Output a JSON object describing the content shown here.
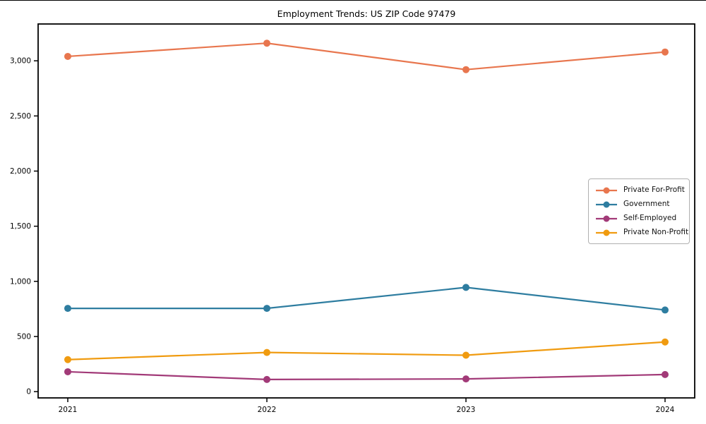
{
  "chart_data": {
    "type": "line",
    "title": "Employment Trends: US ZIP Code 97479",
    "xlabel": "",
    "ylabel": "",
    "x_labels": [
      "2021",
      "2022",
      "2023",
      "2024"
    ],
    "yticks": [
      0,
      500,
      1000,
      1500,
      2000,
      2500,
      3000
    ],
    "ytick_labels": [
      "0",
      "500",
      "1,000",
      "1,500",
      "2,000",
      "2,500",
      "3,000"
    ],
    "ylim": [
      -57,
      3334
    ],
    "grid": false,
    "legend_position": "center-right",
    "series": [
      {
        "name": "Private For-Profit",
        "color": "#e8764e",
        "values": [
          3040,
          3160,
          2920,
          3080
        ]
      },
      {
        "name": "Government",
        "color": "#2e7da0",
        "values": [
          755,
          755,
          945,
          740
        ]
      },
      {
        "name": "Self-Employed",
        "color": "#a23a78",
        "values": [
          180,
          110,
          115,
          155
        ]
      },
      {
        "name": "Private Non-Profit",
        "color": "#f09b10",
        "values": [
          290,
          355,
          330,
          450
        ]
      }
    ]
  }
}
